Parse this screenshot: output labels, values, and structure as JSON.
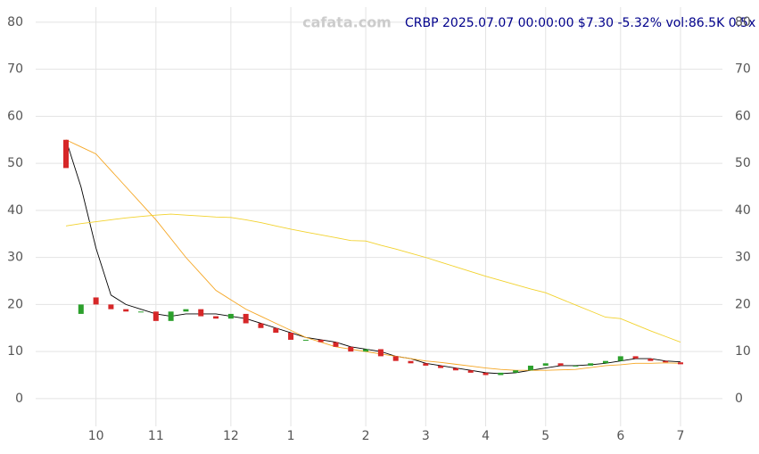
{
  "chart_data": {
    "type": "candlestick",
    "watermark": "cafata.com",
    "title": "CRBP 2025.07.07 00:00:00 $7.30 -5.32% vol:86.5K 0.5x",
    "categories": [
      null,
      null,
      "10",
      null,
      null,
      null,
      "11",
      null,
      null,
      null,
      null,
      "12",
      null,
      null,
      null,
      "1",
      null,
      null,
      null,
      null,
      "2",
      null,
      null,
      null,
      "3",
      null,
      null,
      null,
      "4",
      null,
      null,
      null,
      "5",
      null,
      null,
      null,
      null,
      "6",
      null,
      null,
      null,
      "7"
    ],
    "open": [
      55,
      18,
      21.5,
      20,
      19,
      18.5,
      18.5,
      16.5,
      18.5,
      19,
      17.5,
      17,
      18,
      16,
      15,
      14,
      12.5,
      12.5,
      12,
      11,
      10,
      10.5,
      9,
      8,
      7.5,
      7,
      6.5,
      6,
      5.5,
      5,
      5.5,
      6,
      7,
      7.5,
      7,
      7,
      7.5,
      8,
      9,
      8.5,
      8,
      7.7
    ],
    "close": [
      49,
      20,
      20,
      19,
      18.5,
      18.5,
      16.5,
      18.5,
      19,
      17.5,
      17,
      18,
      16,
      15,
      14,
      12.5,
      12.5,
      12,
      11,
      10,
      10.5,
      9,
      8,
      7.5,
      7,
      6.5,
      6,
      5.5,
      5,
      5.5,
      6,
      7,
      7.5,
      7,
      7,
      7.5,
      8,
      9,
      8.5,
      8,
      7.7,
      7.3
    ],
    "up_color": "#2ca02c",
    "down_color": "#d62728",
    "series": [
      {
        "color": "#000000",
        "values": [
          55,
          45,
          32,
          22,
          20,
          19,
          18,
          17.5,
          18,
          18,
          18,
          17.5,
          17,
          16,
          15,
          14,
          13,
          12.5,
          12,
          11,
          10.5,
          10,
          9,
          8.5,
          7.5,
          7,
          6.5,
          6,
          5.5,
          5.3,
          5.5,
          6,
          6.5,
          7,
          7,
          7.2,
          7.5,
          8,
          8.5,
          8.5,
          8,
          7.8
        ]
      },
      {
        "color": "#f5a623",
        "values": [
          55,
          53.5,
          52,
          48.5,
          45,
          41.5,
          38,
          34,
          30,
          26.5,
          23,
          21,
          19,
          17.5,
          16,
          14.5,
          13,
          12,
          11,
          10.5,
          10,
          9.5,
          9,
          8.5,
          8,
          7.7,
          7.3,
          6.9,
          6.5,
          6.2,
          6,
          6,
          6,
          6.1,
          6.2,
          6.6,
          7,
          7.2,
          7.5,
          7.5,
          7.6,
          7.5
        ]
      },
      {
        "color": "#f2d22e",
        "values": [
          36.7,
          37.2,
          37.6,
          38,
          38.4,
          38.7,
          39,
          39.2,
          39,
          38.8,
          38.6,
          38.5,
          38,
          37.4,
          36.7,
          36,
          35.4,
          34.8,
          34.2,
          33.6,
          33.5,
          32.6,
          31.8,
          30.9,
          30,
          29,
          28,
          27,
          26,
          25.1,
          24.2,
          23.3,
          22.5,
          21.2,
          19.9,
          18.6,
          17.3,
          17,
          15.7,
          14.4,
          13.2,
          12
        ]
      }
    ],
    "ylim": [
      -5.9,
      83.2
    ],
    "yticks": [
      0,
      10,
      20,
      30,
      40,
      50,
      60,
      70,
      80
    ],
    "grid": true
  }
}
